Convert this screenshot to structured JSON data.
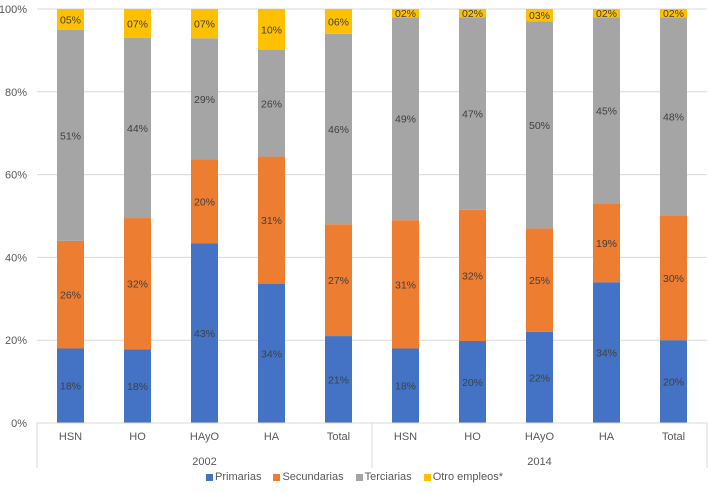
{
  "chart_data": {
    "type": "bar",
    "stacked": true,
    "percent_stacked": true,
    "title": "",
    "xlabel": "",
    "ylabel": "",
    "ylim": [
      0,
      100
    ],
    "yticks": [
      "0%",
      "20%",
      "40%",
      "60%",
      "80%",
      "100%"
    ],
    "ytick_values": [
      0,
      20,
      40,
      60,
      80,
      100
    ],
    "grid": true,
    "legend_position": "bottom",
    "groups": [
      {
        "label": "2002",
        "categories": [
          "HSN",
          "HO",
          "HAyO",
          "HA",
          "Total"
        ]
      },
      {
        "label": "2014",
        "categories": [
          "HSN",
          "HO",
          "HAyO",
          "HA",
          "Total"
        ]
      }
    ],
    "categories": [
      "HSN",
      "HO",
      "HAyO",
      "HA",
      "Total",
      "HSN",
      "HO",
      "HAyO",
      "HA",
      "Total"
    ],
    "series": [
      {
        "name": "Primarias",
        "color": "#4472c4",
        "values": [
          18,
          18,
          43,
          34,
          21,
          18,
          20,
          22,
          34,
          20
        ],
        "labels": [
          "18%",
          "18%",
          "43%",
          "34%",
          "21%",
          "18%",
          "20%",
          "22%",
          "34%",
          "20%"
        ]
      },
      {
        "name": "Secundarias",
        "color": "#ed7d31",
        "values": [
          26,
          32,
          20,
          31,
          27,
          31,
          32,
          25,
          19,
          30
        ],
        "labels": [
          "26%",
          "32%",
          "20%",
          "31%",
          "27%",
          "31%",
          "32%",
          "25%",
          "19%",
          "30%"
        ]
      },
      {
        "name": "Terciarias",
        "color": "#a5a5a5",
        "values": [
          51,
          44,
          29,
          26,
          46,
          49,
          47,
          50,
          45,
          48
        ],
        "labels": [
          "51%",
          "44%",
          "29%",
          "26%",
          "46%",
          "49%",
          "47%",
          "50%",
          "45%",
          "48%"
        ]
      },
      {
        "name": "Otro empleos*",
        "color": "#ffc000",
        "values": [
          5,
          7,
          7,
          10,
          6,
          2,
          2,
          3,
          2,
          2
        ],
        "labels": [
          "05%",
          "07%",
          "07%",
          "10%",
          "06%",
          "02%",
          "02%",
          "03%",
          "02%",
          "02%"
        ]
      }
    ]
  }
}
